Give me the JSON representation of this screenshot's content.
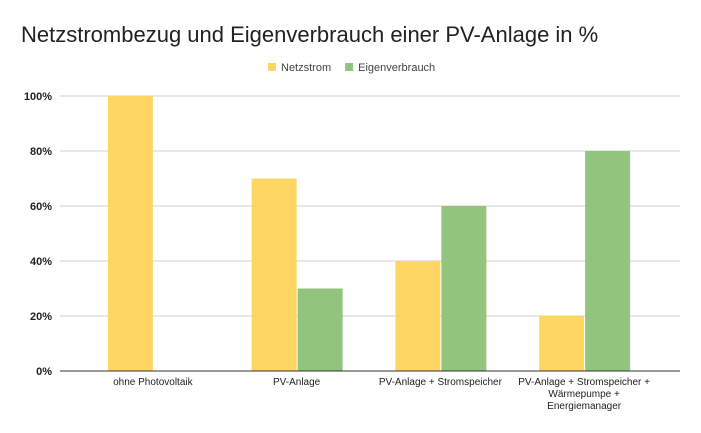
{
  "chart_data": {
    "type": "bar",
    "title": "Netzstrombezug und Eigenverbrauch einer PV-Anlage in %",
    "xlabel": "",
    "ylabel": "",
    "categories": [
      "ohne Photovoltaik",
      "PV-Anlage",
      "PV-Anlage + Stromspeicher",
      "PV-Anlage + Stromspeicher +\nWärmepumpe +\nEnergiemanager"
    ],
    "series": [
      {
        "name": "Netzstrom",
        "values": [
          100,
          70,
          40,
          20
        ],
        "color": "#fdd663"
      },
      {
        "name": "Eigenverbrauch",
        "values": [
          0,
          30,
          60,
          80
        ],
        "color": "#93c47d"
      }
    ],
    "ylim": [
      0,
      100
    ],
    "yticks": [
      0,
      20,
      40,
      60,
      80,
      100
    ],
    "ytick_labels": [
      "0%",
      "20%",
      "40%",
      "60%",
      "80%",
      "100%"
    ],
    "grid": true,
    "legend_position": "top"
  }
}
